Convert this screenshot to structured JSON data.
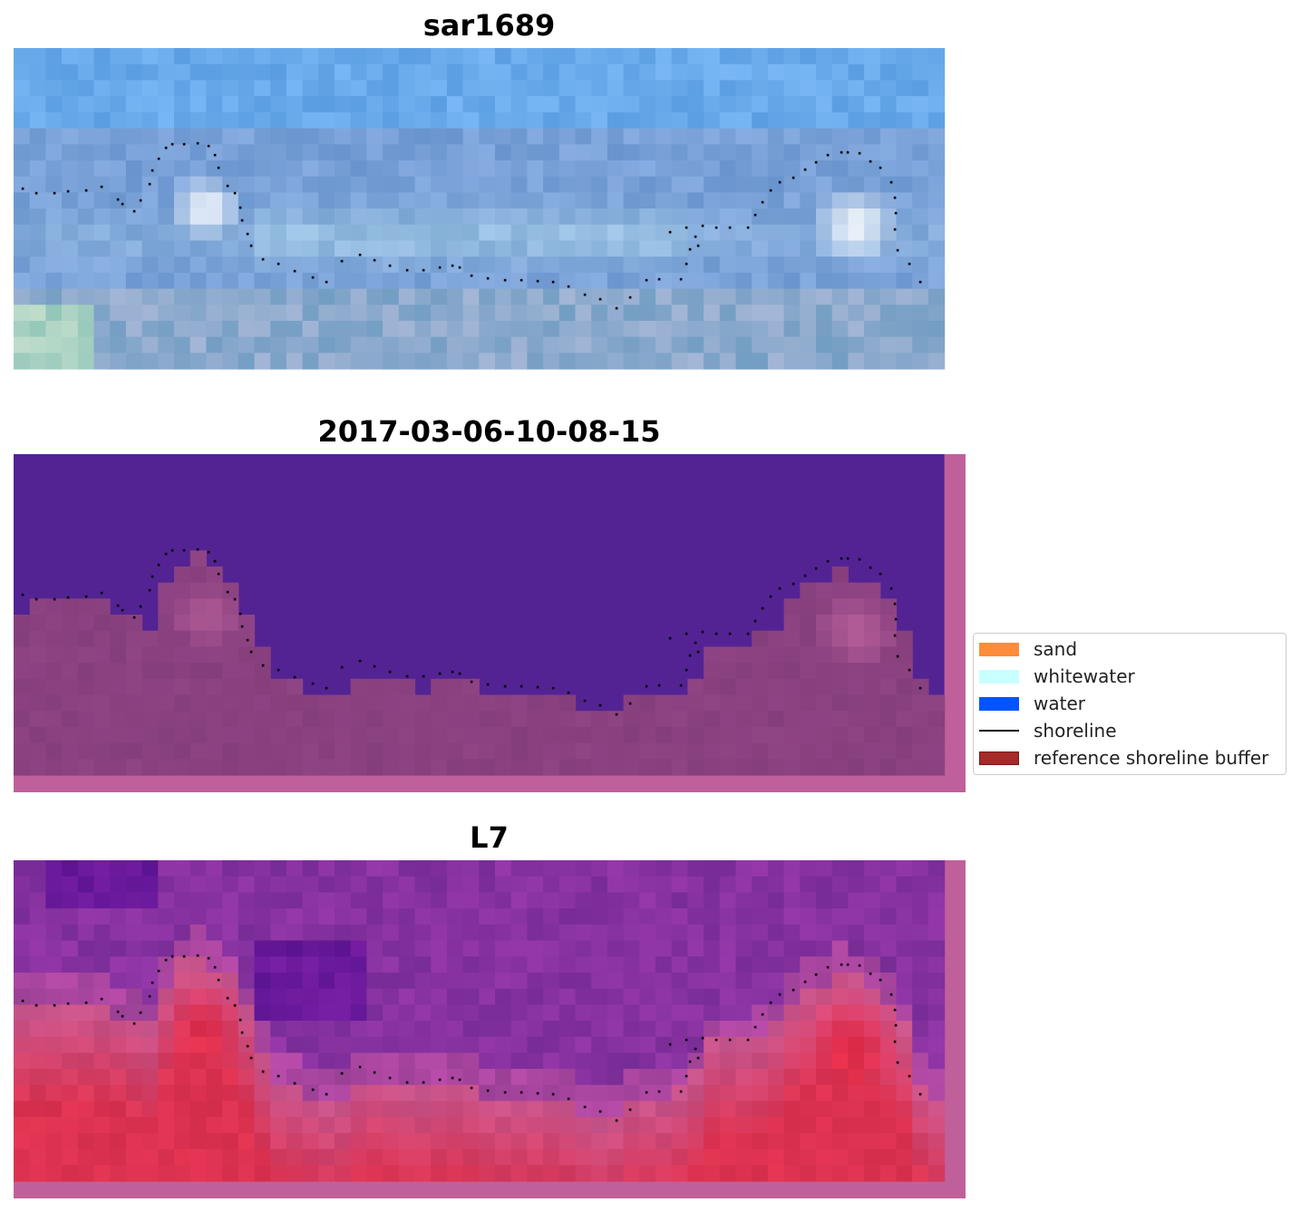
{
  "panels": [
    {
      "title": "sar1689",
      "type": "rgb"
    },
    {
      "title": "2017-03-06-10-08-15",
      "type": "classification"
    },
    {
      "title": "L7",
      "type": "index"
    }
  ],
  "legend": {
    "items": [
      {
        "label": "sand",
        "kind": "patch",
        "color": "#ff8c3a",
        "edge": "#ff8c3a"
      },
      {
        "label": "whitewater",
        "kind": "patch",
        "color": "#c8ffff",
        "edge": "#c8ffff"
      },
      {
        "label": "water",
        "kind": "patch",
        "color": "#0055ff",
        "edge": "#0055ff"
      },
      {
        "label": "shoreline",
        "kind": "line",
        "color": "#000000"
      },
      {
        "label": "reference shoreline buffer",
        "kind": "patch",
        "color": "#a52a2a",
        "edge": "#7a1616"
      }
    ]
  },
  "colors": {
    "classification_water": "#532394",
    "classification_land": "#8a4180",
    "buffer_pink": "#c0609a",
    "shoreline": "#000000"
  }
}
